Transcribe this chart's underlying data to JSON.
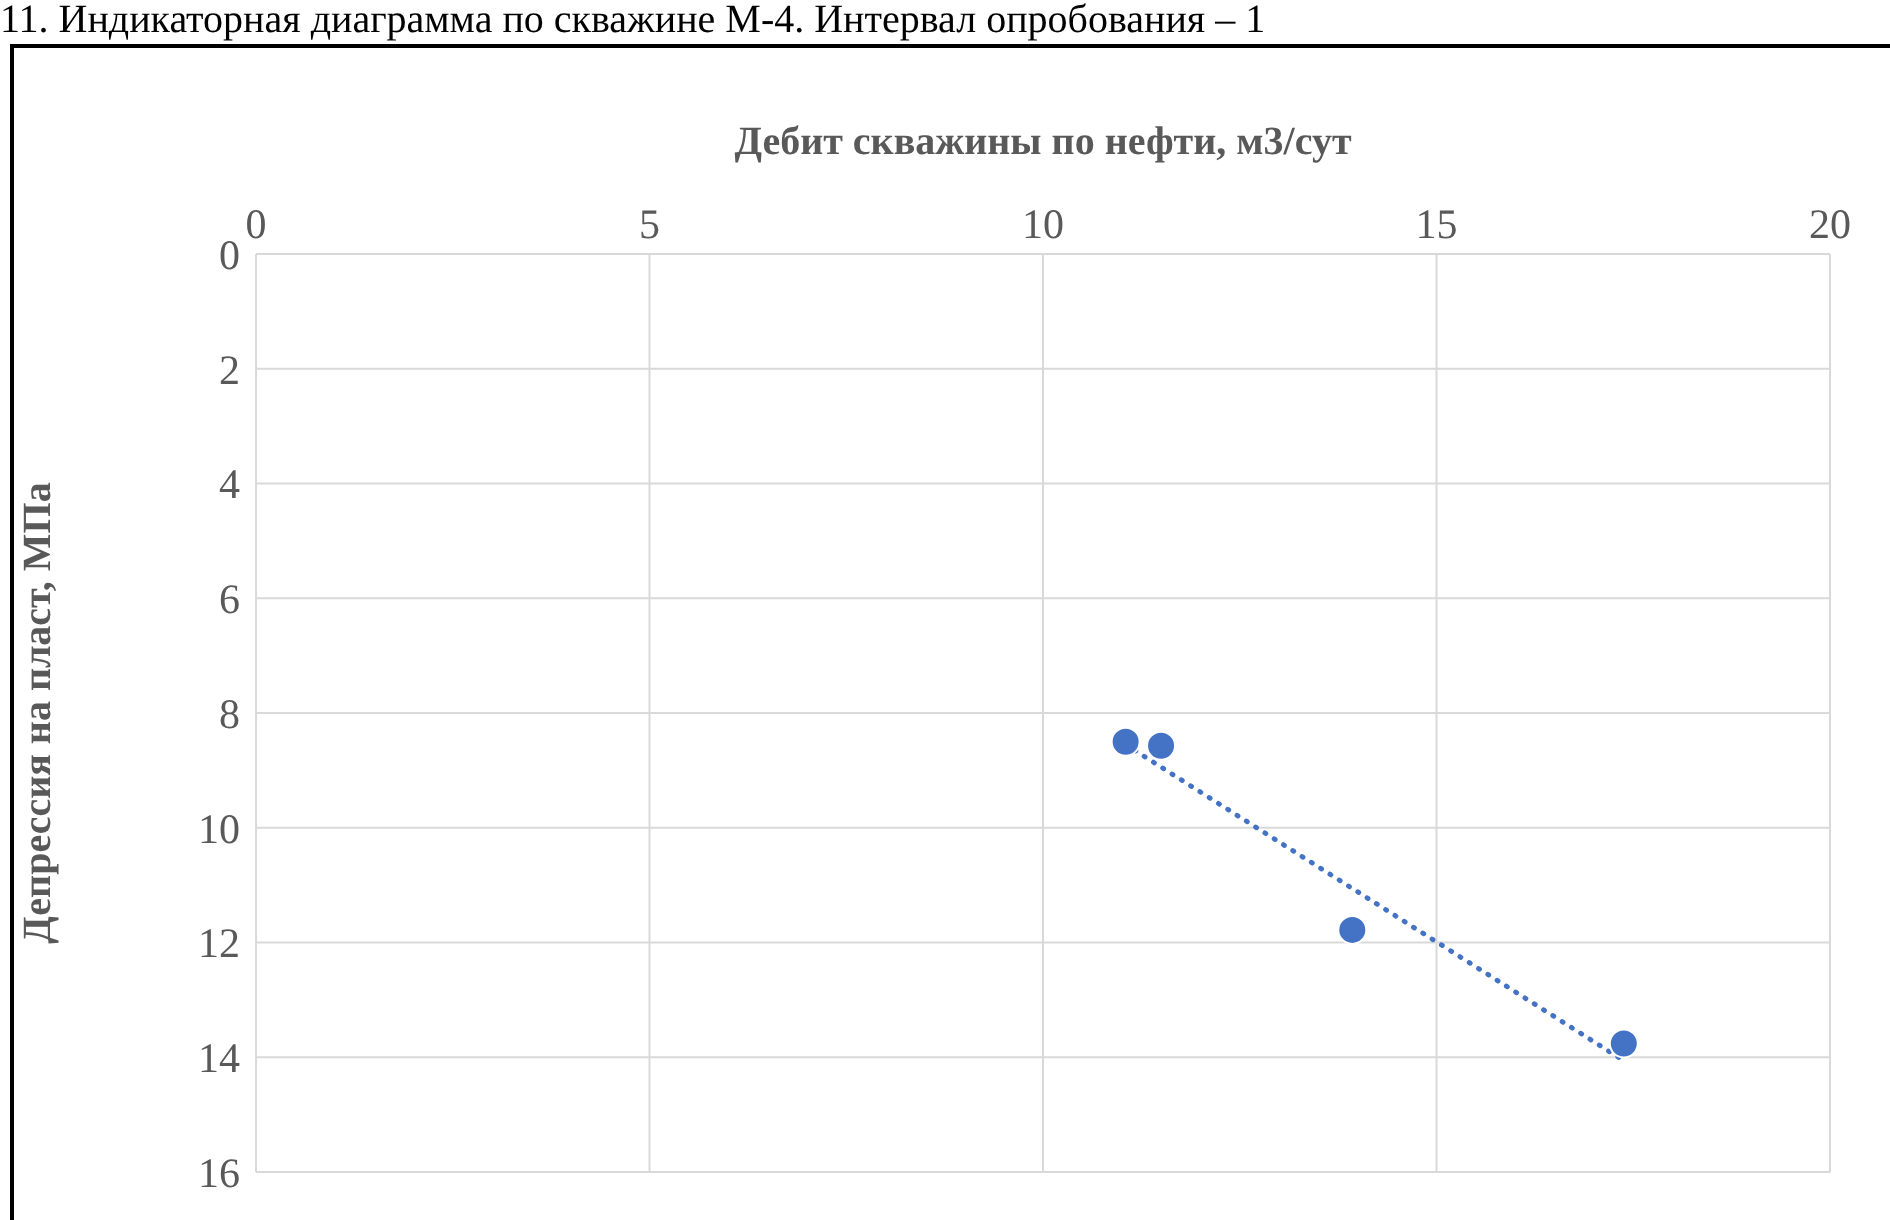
{
  "chart_data": {
    "type": "scatter",
    "title": "11. Индикаторная диаграмма по скважине М-4. Интервал опробования – 1",
    "xlabel": "Дебит скважины по нефти, м3/сут",
    "ylabel": "Депрессия на пласт, МПа",
    "xlim": [
      0,
      20
    ],
    "xticks": [
      0,
      5,
      10,
      15,
      20
    ],
    "ylim": [
      16,
      0
    ],
    "yticks": [
      0,
      2,
      4,
      6,
      8,
      10,
      12,
      14,
      16
    ],
    "grid": true,
    "legend": false,
    "series": [
      {
        "type": "scatter",
        "color": "#4472c4",
        "marker": "circle",
        "x": [
          11.05,
          11.5,
          13.93,
          17.38
        ],
        "values": [
          8.5,
          8.57,
          11.78,
          13.76
        ]
      },
      {
        "type": "line",
        "color": "#4472c4",
        "marker": "none",
        "line_style": "dotted",
        "x": [
          11.05,
          17.38
        ],
        "values": [
          8.55,
          14.06
        ]
      }
    ]
  }
}
